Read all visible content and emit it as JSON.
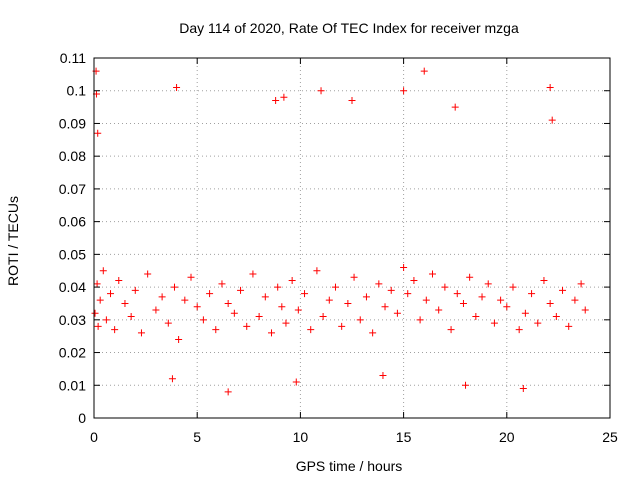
{
  "chart_data": {
    "type": "scatter",
    "title": "Day 114 of 2020, Rate Of TEC Index for receiver mzga",
    "xlabel": "GPS time / hours",
    "ylabel": "ROTI / TECUs",
    "xlim": [
      0,
      25
    ],
    "ylim": [
      0,
      0.11
    ],
    "x_ticks": [
      0,
      5,
      10,
      15,
      20,
      25
    ],
    "x_tick_labels": [
      "0",
      "5",
      "10",
      "15",
      "20",
      "25"
    ],
    "y_ticks": [
      0,
      0.01,
      0.02,
      0.03,
      0.04,
      0.05,
      0.06,
      0.07,
      0.08,
      0.09,
      0.1,
      0.11
    ],
    "y_tick_labels": [
      "0",
      "0.01",
      "0.02",
      "0.03",
      "0.04",
      "0.05",
      "0.06",
      "0.07",
      "0.08",
      "0.09",
      "0.1",
      "0.11"
    ],
    "grid": true,
    "marker": "+",
    "color": "#ff0000",
    "series": [
      {
        "x": [
          0.05,
          0.15,
          0.2,
          0.3,
          0.45,
          0.6,
          0.8,
          1.0,
          1.2,
          1.5,
          1.8,
          2.0,
          2.3,
          2.6,
          3.0,
          3.3,
          3.6,
          3.9,
          4.1,
          4.4,
          4.7,
          5.0,
          5.3,
          5.6,
          5.9,
          6.2,
          6.5,
          6.8,
          7.1,
          7.4,
          7.7,
          8.0,
          8.3,
          8.6,
          8.9,
          9.1,
          9.3,
          9.6,
          9.9,
          10.2,
          10.5,
          10.8,
          11.1,
          11.4,
          11.7,
          12.0,
          12.3,
          12.6,
          12.9,
          13.2,
          13.5,
          13.8,
          14.1,
          14.4,
          14.7,
          15.0,
          15.2,
          15.5,
          15.8,
          16.1,
          16.4,
          16.7,
          17.0,
          17.3,
          17.6,
          17.9,
          18.2,
          18.5,
          18.8,
          19.1,
          19.4,
          19.7,
          20.0,
          20.3,
          20.6,
          20.9,
          21.2,
          21.5,
          21.8,
          22.1,
          22.4,
          22.7,
          23.0,
          23.3,
          23.6,
          23.8,
          0.1,
          0.12,
          0.18,
          4.0,
          8.8,
          9.2,
          11.0,
          12.5,
          15.0,
          16.0,
          17.5,
          22.1,
          22.2,
          3.8,
          6.5,
          9.8,
          14.0,
          18.0,
          20.8
        ],
        "y": [
          0.032,
          0.041,
          0.028,
          0.036,
          0.045,
          0.03,
          0.038,
          0.027,
          0.042,
          0.035,
          0.031,
          0.039,
          0.026,
          0.044,
          0.033,
          0.037,
          0.029,
          0.04,
          0.024,
          0.036,
          0.043,
          0.034,
          0.03,
          0.038,
          0.027,
          0.041,
          0.035,
          0.032,
          0.039,
          0.028,
          0.044,
          0.031,
          0.037,
          0.026,
          0.04,
          0.034,
          0.029,
          0.042,
          0.033,
          0.038,
          0.027,
          0.045,
          0.031,
          0.036,
          0.04,
          0.028,
          0.035,
          0.043,
          0.03,
          0.037,
          0.026,
          0.041,
          0.034,
          0.039,
          0.032,
          0.046,
          0.038,
          0.042,
          0.03,
          0.036,
          0.044,
          0.033,
          0.04,
          0.027,
          0.038,
          0.035,
          0.043,
          0.031,
          0.037,
          0.041,
          0.029,
          0.036,
          0.034,
          0.04,
          0.027,
          0.032,
          0.038,
          0.029,
          0.042,
          0.035,
          0.031,
          0.039,
          0.028,
          0.036,
          0.041,
          0.033,
          0.106,
          0.099,
          0.087,
          0.101,
          0.097,
          0.098,
          0.1,
          0.097,
          0.1,
          0.106,
          0.095,
          0.101,
          0.091,
          0.012,
          0.008,
          0.011,
          0.013,
          0.01,
          0.009
        ]
      }
    ]
  }
}
